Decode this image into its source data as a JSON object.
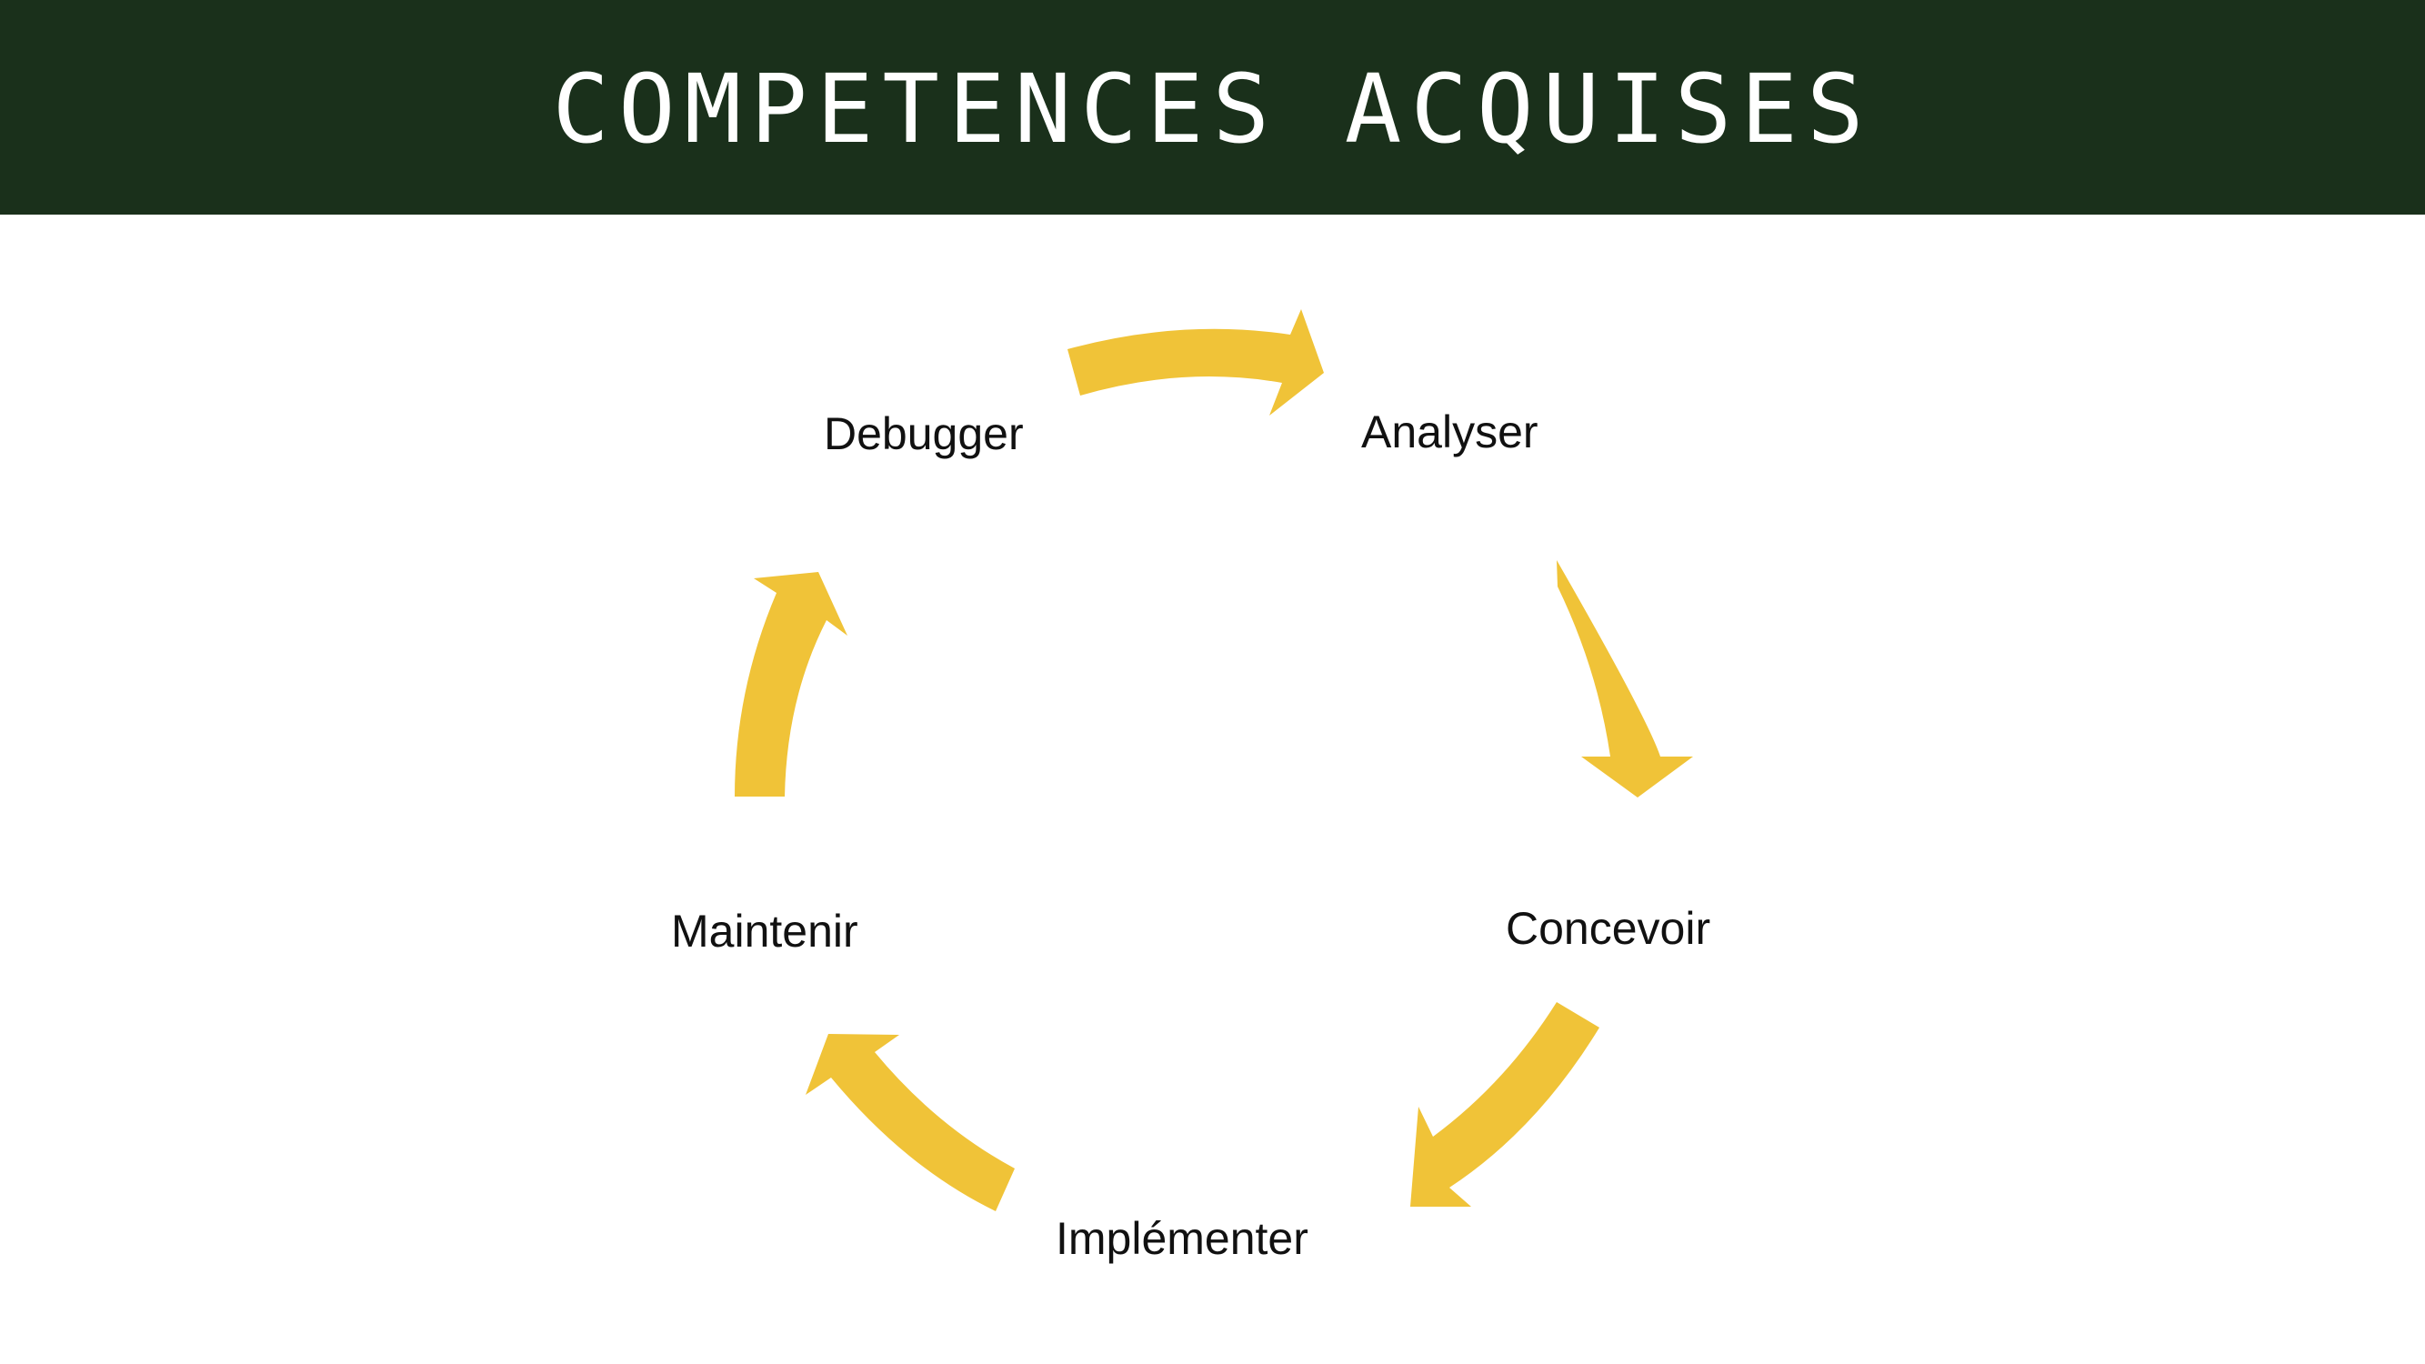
{
  "title": "COMPETENCES ACQUISES",
  "colors": {
    "header_bg": "#1a301b",
    "title_text": "#ffffff",
    "arrow": "#f0c338",
    "label_text": "#111111"
  },
  "cycle": {
    "steps": [
      {
        "label": "Analyser"
      },
      {
        "label": "Concevoir"
      },
      {
        "label": "Implémenter"
      },
      {
        "label": "Maintenir"
      },
      {
        "label": "Debugger"
      }
    ]
  }
}
